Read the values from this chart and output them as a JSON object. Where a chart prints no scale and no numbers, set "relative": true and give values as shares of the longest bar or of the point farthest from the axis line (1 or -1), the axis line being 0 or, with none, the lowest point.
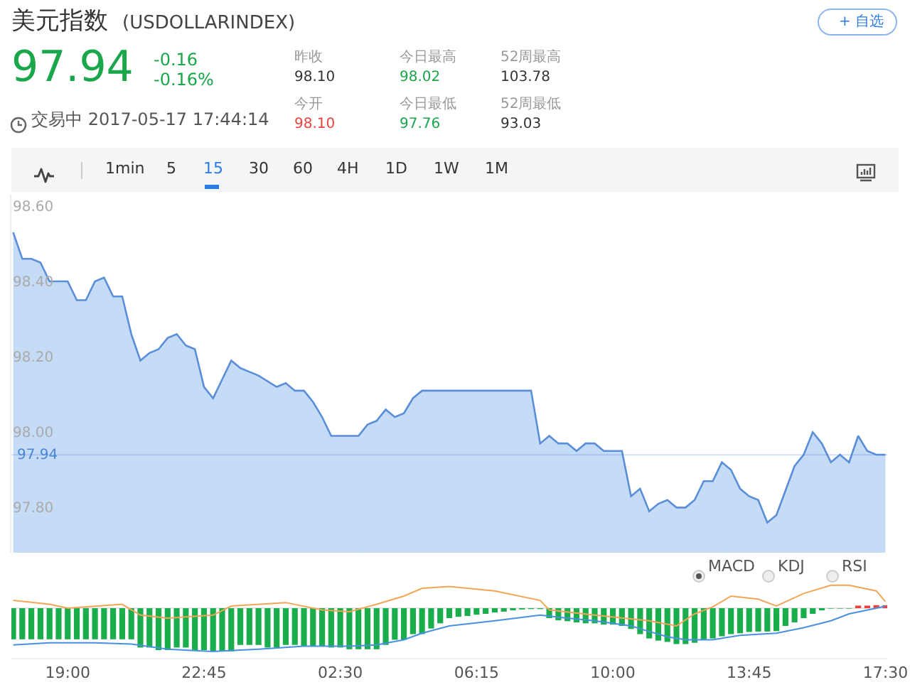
{
  "chart_data": [
    {
      "type": "other",
      "title": "美元指数",
      "subtitle": "(USDOLLARINDEX)",
      "annotations": [
        "97.94",
        "-0.16",
        "-0.16%",
        "交易中 2017-05-17 17:44:14",
        "昨收",
        "98.10",
        "今开",
        "98.10",
        "今日最高",
        "98.02",
        "今日最低",
        "97.76",
        "52周最高",
        "103.78",
        "52周最低",
        "93.03",
        "+ 自选",
        "1min",
        "5",
        "15",
        "30",
        "60",
        "4H",
        "1D",
        "1W",
        "1M"
      ]
    },
    {
      "type": "area",
      "color": "#5b8ed8",
      "x": [
        "2017-05-16T17:30",
        "2017-05-16T17:45",
        "2017-05-16T18:00",
        "2017-05-16T18:15",
        "2017-05-16T18:30",
        "2017-05-16T19:00",
        "2017-05-16T19:15",
        "2017-05-16T19:30",
        "2017-05-16T19:45",
        "2017-05-16T20:00",
        "2017-05-16T20:15",
        "2017-05-16T20:30",
        "2017-05-16T20:45",
        "2017-05-16T21:00",
        "2017-05-16T21:15",
        "2017-05-16T21:30",
        "2017-05-16T21:45",
        "2017-05-16T22:00",
        "2017-05-16T22:15",
        "2017-05-16T22:30",
        "2017-05-16T22:45",
        "2017-05-16T23:00",
        "2017-05-16T23:15",
        "2017-05-16T23:30",
        "2017-05-16T23:45",
        "2017-05-17T00:00",
        "2017-05-17T00:15",
        "2017-05-17T00:45",
        "2017-05-17T01:00",
        "2017-05-17T01:15",
        "2017-05-17T01:30",
        "2017-05-17T01:45",
        "2017-05-17T02:00",
        "2017-05-17T02:15",
        "2017-05-17T03:00",
        "2017-05-17T03:15",
        "2017-05-17T03:30",
        "2017-05-17T03:45",
        "2017-05-17T04:00",
        "2017-05-17T04:15",
        "2017-05-17T04:30",
        "2017-05-17T04:45",
        "2017-05-17T07:45",
        "2017-05-17T08:00",
        "2017-05-17T08:15",
        "2017-05-17T08:30",
        "2017-05-17T08:45",
        "2017-05-17T09:00",
        "2017-05-17T09:15",
        "2017-05-17T09:30",
        "2017-05-17T09:45",
        "2017-05-17T10:15",
        "2017-05-17T10:30",
        "2017-05-17T10:45",
        "2017-05-17T11:00",
        "2017-05-17T11:15",
        "2017-05-17T11:30",
        "2017-05-17T11:45",
        "2017-05-17T12:00",
        "2017-05-17T12:15",
        "2017-05-17T12:30",
        "2017-05-17T12:45",
        "2017-05-17T13:00",
        "2017-05-17T13:15",
        "2017-05-17T13:30",
        "2017-05-17T13:45",
        "2017-05-17T14:00",
        "2017-05-17T14:15",
        "2017-05-17T14:30",
        "2017-05-17T15:00",
        "2017-05-17T15:15",
        "2017-05-17T15:30",
        "2017-05-17T15:45",
        "2017-05-17T16:00",
        "2017-05-17T16:15",
        "2017-05-17T16:30",
        "2017-05-17T16:45",
        "2017-05-17T17:00",
        "2017-05-17T17:15",
        "2017-05-17T17:30"
      ],
      "values": [
        98.53,
        98.46,
        98.46,
        98.45,
        98.4,
        98.4,
        98.35,
        98.35,
        98.4,
        98.41,
        98.36,
        98.36,
        98.26,
        98.19,
        98.21,
        98.22,
        98.25,
        98.26,
        98.23,
        98.22,
        98.12,
        98.09,
        98.14,
        98.19,
        98.17,
        98.16,
        98.15,
        98.12,
        98.13,
        98.11,
        98.11,
        98.08,
        98.04,
        97.99,
        97.99,
        98.02,
        98.03,
        98.06,
        98.04,
        98.05,
        98.09,
        98.11,
        98.11,
        97.97,
        97.99,
        97.97,
        97.97,
        97.95,
        97.97,
        97.97,
        97.95,
        97.95,
        97.83,
        97.85,
        97.79,
        97.81,
        97.82,
        97.8,
        97.8,
        97.82,
        97.87,
        97.87,
        97.92,
        97.9,
        97.85,
        97.83,
        97.82,
        97.76,
        97.78,
        97.91,
        97.94,
        98.0,
        97.97,
        97.92,
        97.94,
        97.92,
        97.99,
        97.95,
        97.94,
        97.94
      ],
      "xlim": [
        "2017-05-16T17:27",
        "2017-05-17T17:33"
      ],
      "ylim": [
        97.68,
        98.63
      ],
      "yticks": [
        {
          "value": 97.8,
          "label": "97.80"
        },
        {
          "value": 98,
          "label": "98.00"
        },
        {
          "value": 98.2,
          "label": "98.20"
        },
        {
          "value": 98.4,
          "label": "98.40"
        },
        {
          "value": 98.6,
          "label": "98.60"
        }
      ],
      "tick_labels": "y",
      "ref_lines": [
        {
          "axis": "y",
          "value": 97.94,
          "label": "97.94",
          "color": "#4a86d8"
        }
      ]
    },
    {
      "type": "bar",
      "relative": true,
      "xlim": [
        "2017-05-16T17:27",
        "2017-05-17T17:33"
      ],
      "xticks": [
        {
          "value": "2017-05-16T19:00",
          "label": "19:00"
        },
        {
          "value": "2017-05-16T22:45",
          "label": "22:45"
        },
        {
          "value": "2017-05-17T02:30",
          "label": "02:30"
        },
        {
          "value": "2017-05-17T06:15",
          "label": "06:15"
        },
        {
          "value": "2017-05-17T10:00",
          "label": "10:00"
        },
        {
          "value": "2017-05-17T13:45",
          "label": "13:45"
        },
        {
          "value": "2017-05-17T17:30",
          "label": "17:30"
        }
      ],
      "tick_labels": "x",
      "annotations": [
        "MACD",
        "KDJ",
        "RSI"
      ],
      "series": [
        {
          "type": "bar",
          "color": "#1aad4c",
          "x": [
            "2017-05-16T17:30",
            "2017-05-16T17:45",
            "2017-05-16T18:00",
            "2017-05-16T18:15",
            "2017-05-16T18:30",
            "2017-05-16T18:45",
            "2017-05-16T19:00",
            "2017-05-16T19:15",
            "2017-05-16T19:30",
            "2017-05-16T19:45",
            "2017-05-16T20:00",
            "2017-05-16T20:15",
            "2017-05-16T20:30",
            "2017-05-16T20:45",
            "2017-05-16T21:00",
            "2017-05-16T21:15",
            "2017-05-16T21:30",
            "2017-05-16T21:45",
            "2017-05-16T22:00",
            "2017-05-16T22:15",
            "2017-05-16T22:30",
            "2017-05-16T22:45",
            "2017-05-16T23:00",
            "2017-05-16T23:15",
            "2017-05-16T23:30",
            "2017-05-16T23:45",
            "2017-05-17T00:00",
            "2017-05-17T00:15",
            "2017-05-17T00:30",
            "2017-05-17T00:45",
            "2017-05-17T01:00",
            "2017-05-17T01:15",
            "2017-05-17T01:30",
            "2017-05-17T01:45",
            "2017-05-17T02:00",
            "2017-05-17T02:15",
            "2017-05-17T02:30",
            "2017-05-17T02:45",
            "2017-05-17T03:00",
            "2017-05-17T03:15",
            "2017-05-17T03:30",
            "2017-05-17T03:45",
            "2017-05-17T04:00",
            "2017-05-17T04:15",
            "2017-05-17T04:30",
            "2017-05-17T04:45",
            "2017-05-17T05:00",
            "2017-05-17T05:15",
            "2017-05-17T05:30",
            "2017-05-17T05:45",
            "2017-05-17T06:00",
            "2017-05-17T06:15",
            "2017-05-17T06:30",
            "2017-05-17T06:45",
            "2017-05-17T07:00",
            "2017-05-17T07:15",
            "2017-05-17T07:30",
            "2017-05-17T07:45",
            "2017-05-17T08:00",
            "2017-05-17T08:15",
            "2017-05-17T08:30",
            "2017-05-17T08:45",
            "2017-05-17T09:00",
            "2017-05-17T09:15",
            "2017-05-17T09:30",
            "2017-05-17T09:45",
            "2017-05-17T10:00",
            "2017-05-17T10:15",
            "2017-05-17T10:30",
            "2017-05-17T10:45",
            "2017-05-17T11:00",
            "2017-05-17T11:15",
            "2017-05-17T11:30",
            "2017-05-17T11:45",
            "2017-05-17T12:00",
            "2017-05-17T12:15",
            "2017-05-17T12:30",
            "2017-05-17T12:45",
            "2017-05-17T13:00",
            "2017-05-17T13:15",
            "2017-05-17T13:30",
            "2017-05-17T13:45",
            "2017-05-17T14:00",
            "2017-05-17T14:15",
            "2017-05-17T14:30",
            "2017-05-17T14:45",
            "2017-05-17T15:00",
            "2017-05-17T15:15",
            "2017-05-17T15:30",
            "2017-05-17T15:45",
            "2017-05-17T16:00",
            "2017-05-17T16:15",
            "2017-05-17T16:30"
          ],
          "values": [
            -0.72,
            -0.72,
            -0.72,
            -0.72,
            -0.72,
            -0.72,
            -0.72,
            -0.72,
            -0.72,
            -0.72,
            -0.72,
            -0.72,
            -0.72,
            -0.72,
            -0.91,
            -0.91,
            -0.97,
            -0.97,
            -0.91,
            -0.91,
            -0.97,
            -0.97,
            -1,
            -1,
            -1,
            -0.85,
            -0.85,
            -0.85,
            -0.91,
            -0.91,
            -0.85,
            -0.85,
            -0.88,
            -0.88,
            -0.88,
            -0.91,
            -0.91,
            -0.95,
            -0.95,
            -0.95,
            -0.95,
            -0.85,
            -0.73,
            -0.73,
            -0.6,
            -0.6,
            -0.47,
            -0.35,
            -0.23,
            -0.2,
            -0.18,
            -0.15,
            -0.13,
            -0.1,
            -0.08,
            -0.05,
            -0.03,
            -0.02,
            -0.02,
            -0.23,
            -0.28,
            -0.3,
            -0.33,
            -0.35,
            -0.35,
            -0.38,
            -0.38,
            -0.41,
            -0.48,
            -0.6,
            -0.7,
            -0.75,
            -0.78,
            -0.83,
            -0.83,
            -0.8,
            -0.73,
            -0.7,
            -0.65,
            -0.6,
            -0.58,
            -0.55,
            -0.54,
            -0.54,
            -0.53,
            -0.41,
            -0.33,
            -0.23,
            -0.13,
            -0.05,
            -0.01,
            -0.01,
            -0.01
          ]
        },
        {
          "type": "bar",
          "color": "#e8433d",
          "x": [
            "2017-05-17T16:45",
            "2017-05-17T17:00",
            "2017-05-17T17:15",
            "2017-05-17T17:30"
          ],
          "values": [
            0.06,
            0.06,
            0.07,
            0.07
          ]
        },
        {
          "type": "line",
          "color": "#4a90e2",
          "x": [
            "2017-05-16T17:30",
            "2017-05-16T18:30",
            "2017-05-16T19:45",
            "2017-05-16T20:45",
            "2017-05-16T21:45",
            "2017-05-16T23:00",
            "2017-05-17T00:15",
            "2017-05-17T01:30",
            "2017-05-17T02:45",
            "2017-05-17T03:30",
            "2017-05-17T04:15",
            "2017-05-17T04:45",
            "2017-05-17T05:30",
            "2017-05-17T06:45",
            "2017-05-17T08:00",
            "2017-05-17T08:45",
            "2017-05-17T09:30",
            "2017-05-17T10:30",
            "2017-05-17T11:00",
            "2017-05-17T11:30",
            "2017-05-17T12:00",
            "2017-05-17T12:45",
            "2017-05-17T13:30",
            "2017-05-17T14:30",
            "2017-05-17T15:15",
            "2017-05-17T16:00",
            "2017-05-17T16:30",
            "2017-05-17T17:15",
            "2017-05-17T17:30"
          ],
          "values": [
            -0.85,
            -0.8,
            -0.8,
            -0.83,
            -0.95,
            -1,
            -0.95,
            -0.88,
            -0.88,
            -0.85,
            -0.73,
            -0.58,
            -0.41,
            -0.29,
            -0.16,
            -0.23,
            -0.29,
            -0.41,
            -0.54,
            -0.66,
            -0.73,
            -0.73,
            -0.63,
            -0.58,
            -0.45,
            -0.29,
            -0.13,
            0,
            0.05
          ]
        },
        {
          "type": "line",
          "color": "#f3a557",
          "x": [
            "2017-05-16T17:30",
            "2017-05-16T18:30",
            "2017-05-16T19:00",
            "2017-05-16T20:30",
            "2017-05-16T21:00",
            "2017-05-16T21:45",
            "2017-05-16T23:00",
            "2017-05-16T23:30",
            "2017-05-17T01:00",
            "2017-05-17T02:00",
            "2017-05-17T02:45",
            "2017-05-17T03:30",
            "2017-05-17T04:15",
            "2017-05-17T04:45",
            "2017-05-17T05:30",
            "2017-05-17T06:45",
            "2017-05-17T08:00",
            "2017-05-17T08:15",
            "2017-05-17T09:30",
            "2017-05-17T11:00",
            "2017-05-17T11:45",
            "2017-05-17T12:15",
            "2017-05-17T12:45",
            "2017-05-17T13:15",
            "2017-05-17T14:00",
            "2017-05-17T14:30",
            "2017-05-17T15:15",
            "2017-05-17T16:00",
            "2017-05-17T16:30",
            "2017-05-17T17:15",
            "2017-05-17T17:30"
          ],
          "values": [
            0.18,
            0.09,
            0,
            0.09,
            -0.16,
            -0.23,
            -0.16,
            0.05,
            0.13,
            -0.04,
            -0.08,
            0.09,
            0.28,
            0.46,
            0.5,
            0.4,
            0.18,
            -0.04,
            -0.16,
            -0.29,
            -0.41,
            -0.13,
            0.03,
            0.28,
            0.21,
            0.05,
            0.34,
            0.53,
            0.53,
            0.4,
            0.15
          ]
        }
      ]
    }
  ]
}
